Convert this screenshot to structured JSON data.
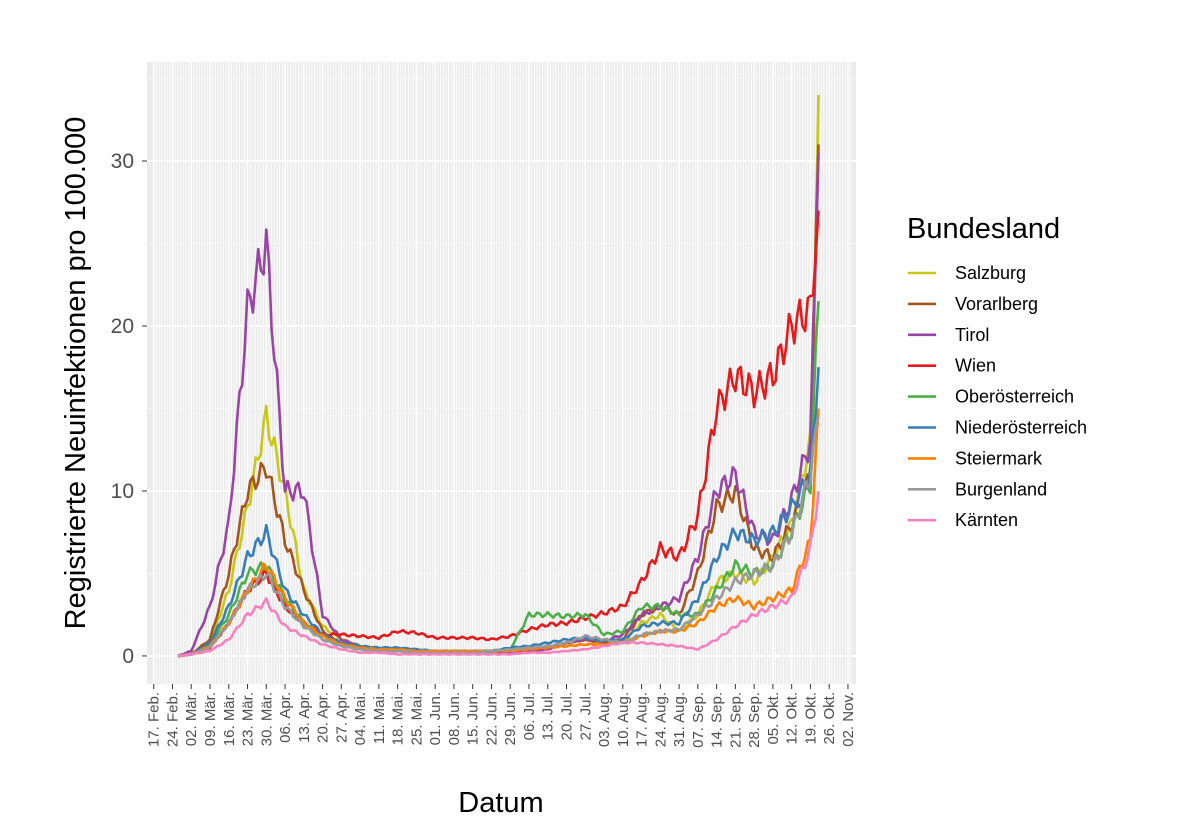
{
  "chart_data": {
    "type": "line",
    "xlabel": "Datum",
    "ylabel": "Registrierte Neuinfektionen pro 100.000",
    "ylim": [
      -1.7,
      36
    ],
    "yticks": [
      0,
      10,
      20,
      30
    ],
    "xlim": [
      -2.5,
      262
    ],
    "xtick_labels": [
      "17. Feb.",
      "24. Feb.",
      "02. Mär.",
      "09. Mär.",
      "16. Mär.",
      "23. Mär.",
      "30. Mär.",
      "06. Apr.",
      "13. Apr.",
      "20. Apr.",
      "27. Apr.",
      "04. Mai.",
      "11. Mai.",
      "18. Mai.",
      "25. Mai.",
      "01. Jun.",
      "08. Jun.",
      "15. Jun.",
      "22. Jun.",
      "29. Jun.",
      "06. Jul.",
      "13. Jul.",
      "20. Jul.",
      "27. Jul.",
      "03. Aug.",
      "10. Aug.",
      "17. Aug.",
      "24. Aug.",
      "31. Aug.",
      "07. Sep.",
      "14. Sep.",
      "21. Sep.",
      "28. Sep.",
      "05. Okt.",
      "12. Okt.",
      "19. Okt.",
      "26. Okt.",
      "02. Nov."
    ],
    "x_dates": [
      "26. Feb.",
      "02. Mär.",
      "09. Mär.",
      "16. Mär.",
      "23. Mär.",
      "30. Mär.",
      "06. Apr.",
      "13. Apr.",
      "20. Apr.",
      "27. Apr.",
      "04. Mai.",
      "11. Mai.",
      "18. Mai.",
      "25. Mai.",
      "01. Jun.",
      "08. Jun.",
      "15. Jun.",
      "22. Jun.",
      "29. Jun.",
      "06. Jul.",
      "13. Jul.",
      "20. Jul.",
      "27. Jul.",
      "03. Aug.",
      "10. Aug.",
      "17. Aug.",
      "24. Aug.",
      "31. Aug.",
      "07. Sep.",
      "14. Sep.",
      "21. Sep.",
      "28. Sep.",
      "05. Okt.",
      "12. Okt.",
      "19. Okt.",
      "23. Okt."
    ],
    "grid": true,
    "legend_title": "Bundesland",
    "legend_position": "right",
    "series": [
      {
        "name": "Salzburg",
        "color": "#c8c819",
        "values": [
          0,
          0.1,
          0.8,
          4,
          9,
          14.5,
          10,
          4,
          1.8,
          1,
          0.6,
          0.4,
          0.3,
          0.3,
          0.2,
          0.2,
          0.2,
          0.2,
          0.3,
          0.4,
          0.5,
          0.8,
          1,
          0.7,
          0.8,
          2,
          2.5,
          1.5,
          2.5,
          4.5,
          5,
          4.5,
          6,
          8,
          13,
          34
        ]
      },
      {
        "name": "Vorarlberg",
        "color": "#a6561c",
        "values": [
          0,
          0.1,
          1,
          5,
          10,
          11.5,
          7,
          4,
          1.5,
          0.7,
          0.4,
          0.3,
          0.3,
          0.2,
          0.2,
          0.2,
          0.3,
          0.3,
          0.3,
          0.4,
          0.5,
          0.8,
          1,
          0.8,
          1,
          2.5,
          3,
          2.5,
          5,
          9,
          10,
          6.5,
          6,
          8,
          11,
          31
        ]
      },
      {
        "name": "Tirol",
        "color": "#9a45a6",
        "values": [
          0,
          0.3,
          3,
          8,
          21,
          25,
          10,
          10,
          2.5,
          1,
          0.6,
          0.4,
          0.3,
          0.3,
          0.2,
          0.2,
          0.2,
          0.2,
          0.2,
          0.3,
          0.4,
          0.8,
          1,
          0.9,
          1.3,
          2.5,
          3,
          3.5,
          6,
          10,
          11,
          7.5,
          7,
          9.5,
          13,
          30.5
        ]
      },
      {
        "name": "Wien",
        "color": "#e41a1c",
        "values": [
          0,
          0.1,
          0.5,
          2,
          4,
          5,
          3,
          2,
          1.3,
          1.3,
          1.2,
          1.1,
          1.5,
          1.4,
          1.1,
          1.1,
          1.1,
          1,
          1.2,
          1.6,
          1.9,
          2,
          2.3,
          2.6,
          3,
          4.5,
          6.5,
          6,
          8.5,
          15,
          17,
          16,
          17,
          20,
          21,
          27
        ]
      },
      {
        "name": "Oberösterreich",
        "color": "#4daf4a",
        "values": [
          0,
          0.1,
          0.7,
          2.5,
          5,
          5.5,
          3.5,
          2,
          1,
          0.6,
          0.4,
          0.3,
          0.3,
          0.2,
          0.2,
          0.2,
          0.2,
          0.2,
          0.4,
          2.5,
          2.5,
          2.4,
          2.5,
          1.3,
          1.5,
          3,
          3,
          2.5,
          2.5,
          4,
          5.5,
          5,
          5.5,
          7.5,
          10.5,
          21.5
        ]
      },
      {
        "name": "Niederösterreich",
        "color": "#377eb8",
        "values": [
          0,
          0.1,
          0.8,
          3,
          6,
          7.5,
          4,
          2.5,
          1.3,
          0.8,
          0.6,
          0.5,
          0.5,
          0.4,
          0.3,
          0.3,
          0.3,
          0.3,
          0.5,
          0.6,
          0.8,
          1,
          1.1,
          0.9,
          1,
          1.8,
          2,
          2,
          3.5,
          6,
          7.5,
          7,
          7.5,
          9,
          11,
          17.5
        ]
      },
      {
        "name": "Steiermark",
        "color": "#ff7f00",
        "values": [
          0,
          0.1,
          0.6,
          2,
          4,
          5.5,
          3.5,
          2,
          1.2,
          0.7,
          0.5,
          0.4,
          0.4,
          0.3,
          0.3,
          0.3,
          0.3,
          0.3,
          0.3,
          0.4,
          0.5,
          0.6,
          0.7,
          0.7,
          0.8,
          1.2,
          1.5,
          1.5,
          2,
          3,
          3.5,
          3,
          3.5,
          4,
          7,
          15
        ]
      },
      {
        "name": "Burgenland",
        "color": "#999999",
        "values": [
          0,
          0.1,
          0.5,
          2,
          4,
          5,
          3,
          1.8,
          1,
          0.6,
          0.4,
          0.3,
          0.3,
          0.2,
          0.2,
          0.2,
          0.2,
          0.3,
          0.4,
          0.5,
          0.6,
          0.8,
          1.2,
          1,
          0.8,
          1.3,
          1.5,
          1.6,
          2.5,
          3.5,
          4.5,
          5,
          5.5,
          7.5,
          11,
          14.5
        ]
      },
      {
        "name": "Kärnten",
        "color": "#f781bf",
        "values": [
          0,
          0.1,
          0.3,
          1,
          2.5,
          3.3,
          1.8,
          1.2,
          0.7,
          0.4,
          0.2,
          0.2,
          0.1,
          0.1,
          0.1,
          0.1,
          0.1,
          0.1,
          0.1,
          0.2,
          0.2,
          0.3,
          0.4,
          0.6,
          0.8,
          0.8,
          0.7,
          0.6,
          0.4,
          1,
          1.8,
          2.5,
          3,
          3.5,
          6.5,
          10
        ]
      }
    ]
  }
}
